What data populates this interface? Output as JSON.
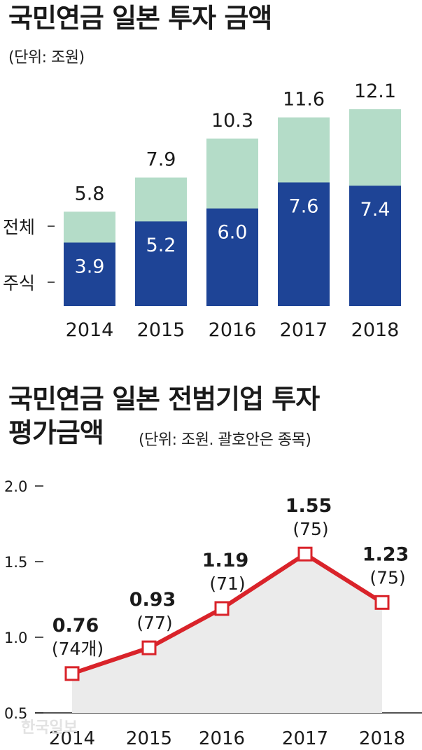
{
  "chart1": {
    "title": "국민연금 일본 투자 금액",
    "unit": "(단위: 조원)",
    "legend": {
      "total": "전체",
      "stock": "주식"
    },
    "colors": {
      "total": "#b4dcc8",
      "stock": "#1e4496"
    }
  },
  "chart2": {
    "title_line1": "국민연금 일본 전범기업 투자",
    "title_line2": "평가금액",
    "unit": "(단위: 조원. 괄호안은 종목)",
    "colors": {
      "line": "#d9232a",
      "area": "#ebebeb",
      "marker_fill": "#ffffff"
    }
  },
  "watermark": "한국일보",
  "chart_data": [
    {
      "type": "bar",
      "categories": [
        "2014",
        "2015",
        "2016",
        "2017",
        "2018"
      ],
      "series": [
        {
          "name": "전체",
          "values": [
            5.8,
            7.9,
            10.3,
            11.6,
            12.1
          ],
          "labels": [
            "5.8",
            "7.9",
            "10.3",
            "11.6",
            "12.1"
          ]
        },
        {
          "name": "주식",
          "values": [
            3.9,
            5.2,
            6.0,
            7.6,
            7.4
          ],
          "labels": [
            "3.9",
            "5.2",
            "6.0",
            "7.6",
            "7.4"
          ]
        }
      ],
      "title": "국민연금 일본 투자 금액",
      "ylim": [
        0,
        12.1
      ]
    },
    {
      "type": "line",
      "x": [
        "2014",
        "2015",
        "2016",
        "2017",
        "2018"
      ],
      "values": [
        0.76,
        0.93,
        1.19,
        1.55,
        1.23
      ],
      "value_labels": [
        "0.76",
        "0.93",
        "1.19",
        "1.55",
        "1.23"
      ],
      "count_labels": [
        "(74개)",
        "(77)",
        "(71)",
        "(75)",
        "(75)"
      ],
      "yticks": [
        "2.0",
        "1.5",
        "1.0",
        "0.5"
      ],
      "ylim": [
        0.5,
        2.0
      ],
      "title": "국민연금 일본 전범기업 투자 평가금액"
    }
  ]
}
